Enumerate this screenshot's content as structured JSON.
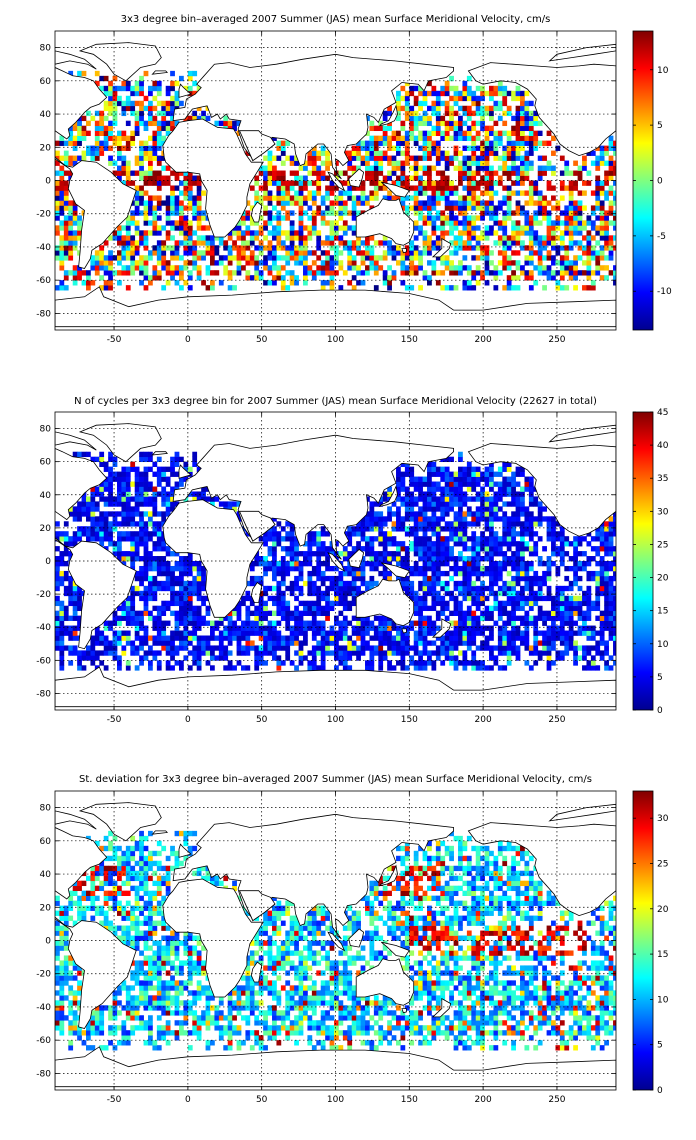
{
  "chart_data": [
    {
      "type": "heatmap",
      "title": "3x3 degree bin–averaged 2007 Summer (JAS) mean Surface Meridional Velocity, cm/s",
      "xlim": [
        -90,
        290
      ],
      "ylim": [
        -90,
        90
      ],
      "x_ticks": [
        -50,
        0,
        50,
        100,
        150,
        200,
        250
      ],
      "y_ticks": [
        80,
        60,
        40,
        20,
        0,
        -20,
        -40,
        -60,
        -80
      ],
      "grid": true,
      "bin_size_deg": 3,
      "colorbar": {
        "min": -13.5,
        "max": 13.5,
        "ticks": [
          10,
          5,
          0,
          -5,
          -10
        ],
        "colormap": "jet",
        "placement": "right"
      }
    },
    {
      "type": "heatmap",
      "title": "N of cycles per 3x3 degree bin for 2007 Summer (JAS) mean Surface Meridional Velocity (22627 in total)",
      "total_cycles": 22627,
      "xlim": [
        -90,
        290
      ],
      "ylim": [
        -90,
        90
      ],
      "x_ticks": [
        -50,
        0,
        50,
        100,
        150,
        200,
        250
      ],
      "y_ticks": [
        80,
        60,
        40,
        20,
        0,
        -20,
        -40,
        -60,
        -80
      ],
      "grid": true,
      "bin_size_deg": 3,
      "colorbar": {
        "min": 0,
        "max": 45,
        "ticks": [
          45,
          40,
          35,
          30,
          25,
          20,
          15,
          10,
          5,
          0
        ],
        "colormap": "jet",
        "placement": "right"
      }
    },
    {
      "type": "heatmap",
      "title": "St. deviation for 3x3 degree bin–averaged 2007 Summer (JAS) mean Surface Meridional Velocity, cm/s",
      "xlim": [
        -90,
        290
      ],
      "ylim": [
        -90,
        90
      ],
      "x_ticks": [
        -50,
        0,
        50,
        100,
        150,
        200,
        250
      ],
      "y_ticks": [
        80,
        60,
        40,
        20,
        0,
        -20,
        -40,
        -60,
        -80
      ],
      "grid": true,
      "bin_size_deg": 3,
      "colorbar": {
        "min": 0,
        "max": 33,
        "ticks": [
          30,
          25,
          20,
          15,
          10,
          5,
          0
        ],
        "colormap": "jet",
        "placement": "right"
      }
    }
  ]
}
